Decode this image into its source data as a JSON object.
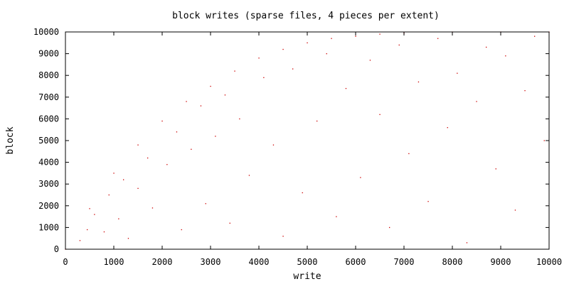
{
  "chart_data": {
    "type": "scatter",
    "title": "block writes (sparse files, 4 pieces per extent)",
    "xlabel": "write",
    "ylabel": "block",
    "xlim": [
      0,
      10000
    ],
    "ylim": [
      0,
      10000
    ],
    "xticks": [
      "0",
      "1000",
      "2000",
      "3000",
      "4000",
      "5000",
      "6000",
      "7000",
      "8000",
      "9000",
      "10000"
    ],
    "yticks": [
      "0",
      "1000",
      "2000",
      "3000",
      "4000",
      "5000",
      "6000",
      "7000",
      "8000",
      "9000",
      "10000"
    ],
    "grid": false,
    "legend": "none",
    "point_color": "#cc0000",
    "series": [
      {
        "style": "envelope",
        "x": [
          0,
          500,
          1000,
          1500,
          2000,
          2500,
          3000,
          3500,
          4000,
          4500,
          5000,
          5500,
          6000,
          6500,
          7000,
          8000,
          9000,
          10000
        ],
        "y": [
          0,
          1870,
          3500,
          4800,
          5900,
          6800,
          7500,
          8200,
          8800,
          9200,
          9500,
          9700,
          9800,
          9900,
          9950,
          10000,
          10000,
          10000
        ]
      },
      {
        "style": "scattered",
        "x": [
          300,
          450,
          600,
          800,
          900,
          1100,
          1200,
          1300,
          1500,
          1700,
          1800,
          2100,
          2300,
          2400,
          2600,
          2800,
          2900,
          3100,
          3300,
          3400,
          3600,
          3800,
          4100,
          4300,
          4500,
          4700,
          4900,
          5200,
          5400,
          5600,
          5800,
          6100,
          6300,
          6500,
          6700,
          6900,
          7100,
          7300,
          7500,
          7700,
          7900,
          8100,
          8300,
          8500,
          8700,
          8900,
          9100,
          9300,
          9500,
          9700,
          9900
        ],
        "y": [
          400,
          900,
          1600,
          800,
          2500,
          1400,
          3200,
          500,
          2800,
          4200,
          1900,
          3900,
          5400,
          900,
          4600,
          6600,
          2100,
          5200,
          7100,
          1200,
          6000,
          3400,
          7900,
          4800,
          600,
          8300,
          2600,
          5900,
          9000,
          1500,
          7400,
          3300,
          8700,
          6200,
          1000,
          9400,
          4400,
          7700,
          2200,
          9700,
          5600,
          8100,
          300,
          6800,
          9300,
          3700,
          8900,
          1800,
          7300,
          9800,
          5000
        ]
      }
    ]
  }
}
